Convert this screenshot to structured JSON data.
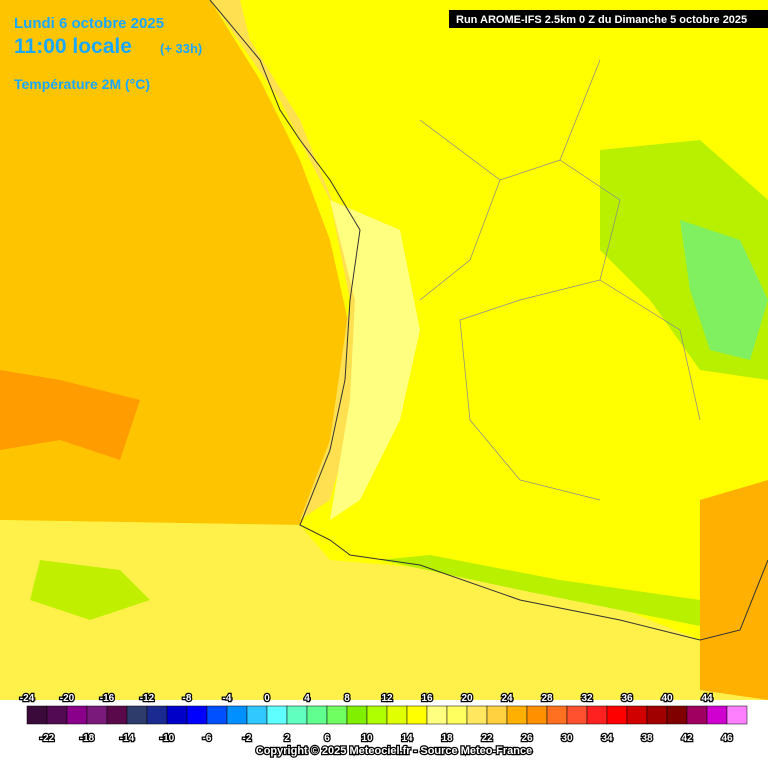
{
  "header": {
    "date": "Lundi 6 octobre 2025",
    "time": "11:00 locale",
    "lead": "(+ 33h)",
    "run": "Run AROME-IFS 2.5km 0 Z du Dimanche 5 octobre 2025"
  },
  "legend": {
    "title": "Température 2M (°C)",
    "ticks": [
      -24,
      -22,
      -20,
      -18,
      -16,
      -14,
      -12,
      -10,
      -8,
      -6,
      -4,
      -2,
      0,
      2,
      4,
      6,
      8,
      10,
      12,
      14,
      16,
      18,
      20,
      22,
      24,
      26,
      28,
      30,
      32,
      34,
      36,
      38,
      40,
      42,
      44,
      46
    ],
    "colors": [
      "#3a0a3a",
      "#520a52",
      "#8a008a",
      "#7a1a7a",
      "#5a0a4a",
      "#2e3c6c",
      "#1a2a90",
      "#0000c8",
      "#0000ff",
      "#0050ff",
      "#0090ff",
      "#30c8ff",
      "#60ffff",
      "#60ffc0",
      "#60ff90",
      "#70ff60",
      "#80f000",
      "#b0ff00",
      "#e0ff00",
      "#ffff00",
      "#ffff80",
      "#ffff60",
      "#ffe860",
      "#ffd040",
      "#ffb000",
      "#ff9000",
      "#ff7020",
      "#ff5030",
      "#ff2020",
      "#ff0000",
      "#d00000",
      "#a00000",
      "#800000",
      "#a00060",
      "#d000d0",
      "#ff80ff"
    ]
  },
  "footer": {
    "copyright": "Copyright © 2025 Meteociel.fr - Source Meteo-France"
  }
}
